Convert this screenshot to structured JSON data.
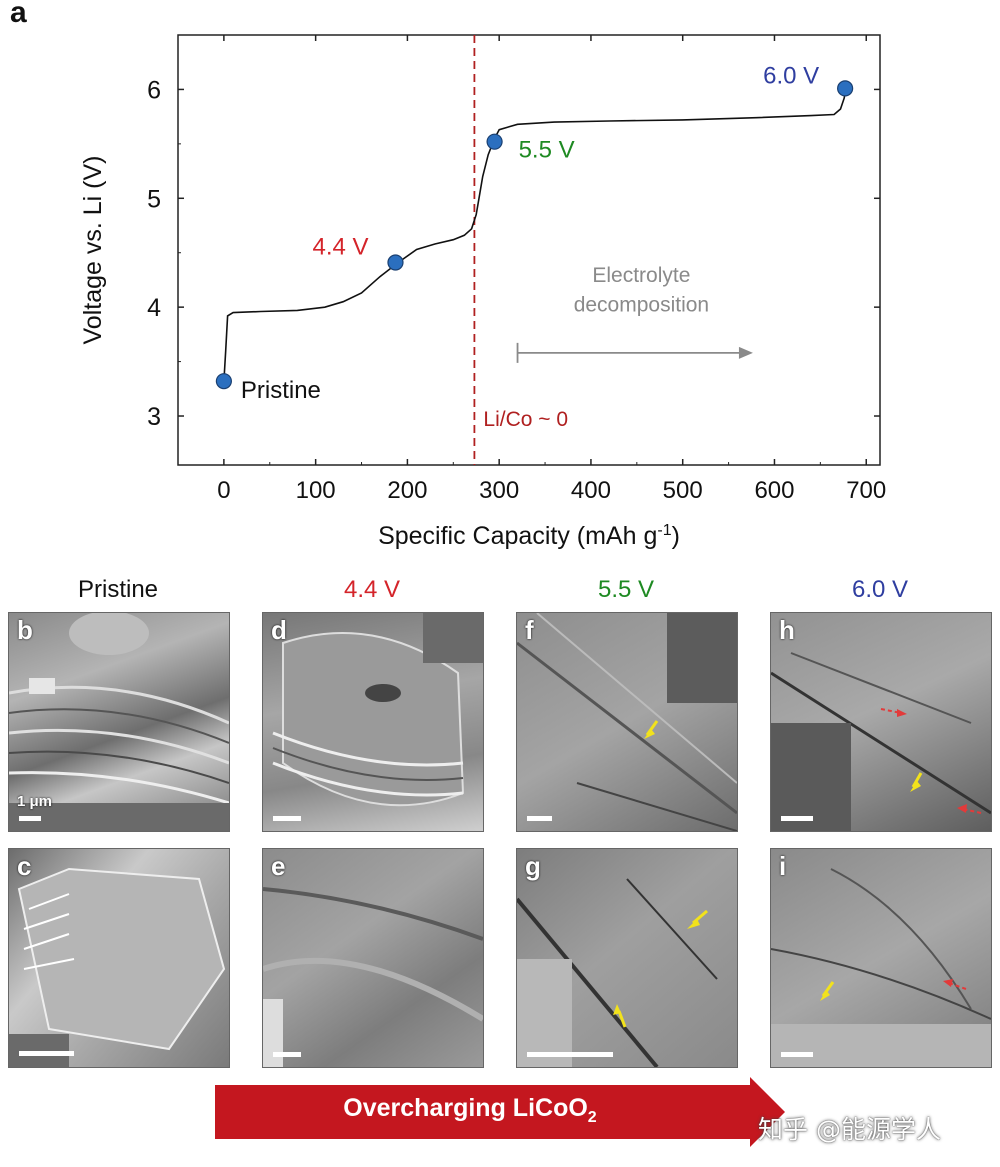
{
  "panel_a_letter": "a",
  "colors": {
    "red": "#d4242a",
    "green": "#1e8a22",
    "blue": "#2f3ea0",
    "marker": "#2b6fbf",
    "dash": "#b02020",
    "gray": "#8a8a8a",
    "yellow_arrow": "#f2e21c",
    "red_arrow": "#e23a3a",
    "banner": "#c4171f"
  },
  "chart_data": {
    "type": "line",
    "xlabel": "Specific Capacity (mAh g",
    "xlabel_sup": "-1",
    "xlabel_end": ")",
    "ylabel": "Voltage vs. Li (V)",
    "xlim": [
      -50,
      715
    ],
    "ylim": [
      2.55,
      6.5
    ],
    "xticks": [
      0,
      100,
      200,
      300,
      400,
      500,
      600,
      700
    ],
    "yticks": [
      3,
      4,
      5,
      6
    ],
    "curve": {
      "x": [
        0,
        2,
        4,
        10,
        40,
        80,
        110,
        130,
        150,
        170,
        190,
        210,
        230,
        250,
        262,
        270,
        275,
        278,
        282,
        288,
        295,
        300,
        320,
        360,
        420,
        500,
        580,
        640,
        665,
        672,
        676,
        678
      ],
      "y": [
        3.32,
        3.6,
        3.92,
        3.95,
        3.96,
        3.97,
        4.0,
        4.05,
        4.13,
        4.28,
        4.41,
        4.53,
        4.58,
        4.62,
        4.66,
        4.72,
        4.85,
        5.0,
        5.2,
        5.4,
        5.55,
        5.63,
        5.68,
        5.7,
        5.71,
        5.72,
        5.74,
        5.76,
        5.77,
        5.82,
        5.92,
        6.01
      ]
    },
    "points": [
      {
        "label": "Pristine",
        "x": 0,
        "y": 3.32,
        "color": "#111111"
      },
      {
        "label": "4.4 V",
        "x": 187,
        "y": 4.41,
        "color": "#d4242a"
      },
      {
        "label": "5.5 V",
        "x": 295,
        "y": 5.52,
        "color": "#1e8a22"
      },
      {
        "label": "6.0 V",
        "x": 677,
        "y": 6.01,
        "color": "#2f3ea0"
      }
    ],
    "vline": {
      "x": 273,
      "label": "Li/Co ~ 0"
    },
    "annotation": {
      "line1": "Electrolyte",
      "line2": "decomposition",
      "x_from": 320,
      "x_to": 570,
      "y": 3.58
    }
  },
  "columns": [
    {
      "title": "Pristine",
      "color": "#111111"
    },
    {
      "title": "4.4 V",
      "color": "#d4242a"
    },
    {
      "title": "5.5 V",
      "color": "#1e8a22"
    },
    {
      "title": "6.0 V",
      "color": "#2f3ea0"
    }
  ],
  "panels": [
    {
      "letter": "b"
    },
    {
      "letter": "c"
    },
    {
      "letter": "d"
    },
    {
      "letter": "e"
    },
    {
      "letter": "f"
    },
    {
      "letter": "g"
    },
    {
      "letter": "h"
    },
    {
      "letter": "i"
    }
  ],
  "scale_label": "1 μm",
  "banner": {
    "text_main": "Overcharging LiCoO",
    "text_sub": "2"
  },
  "watermark": "知乎 @能源学人"
}
